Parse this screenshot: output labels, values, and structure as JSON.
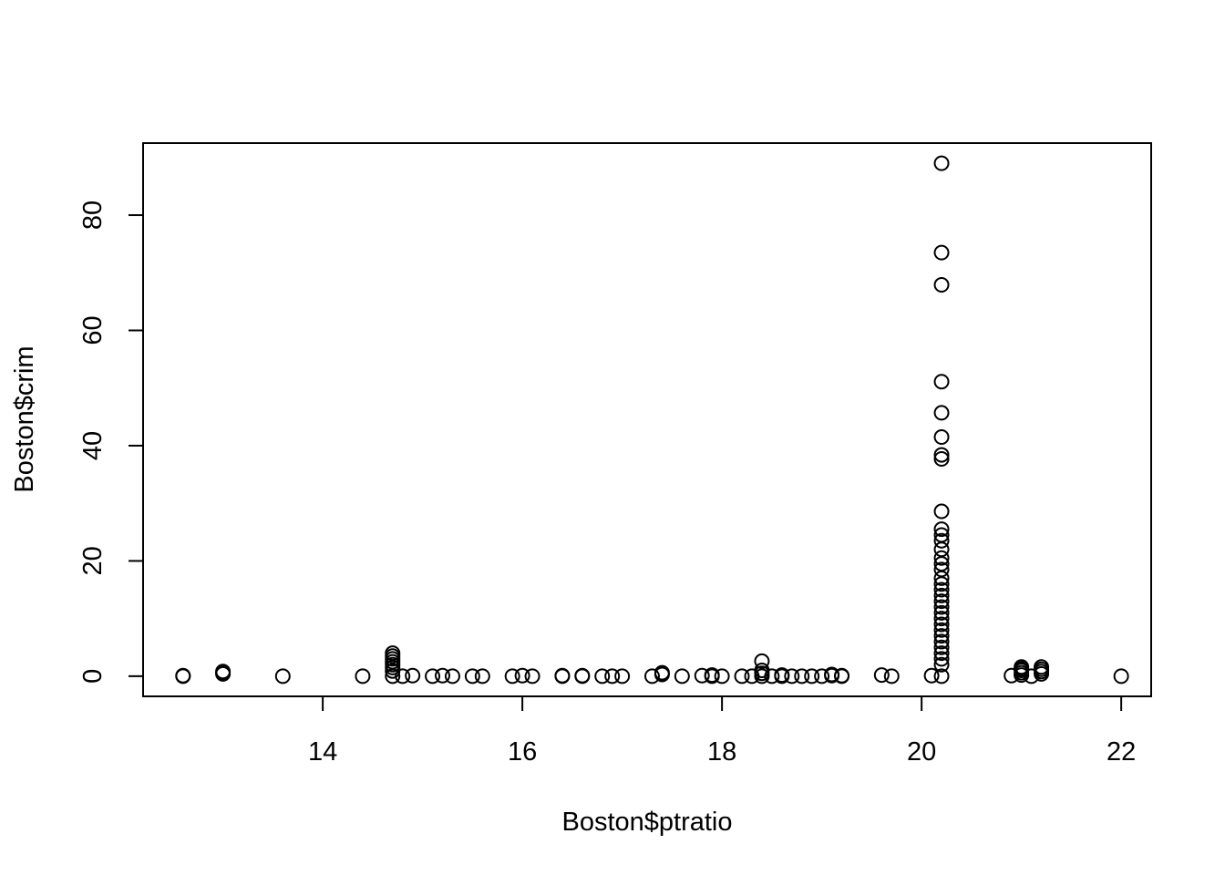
{
  "chart_data": {
    "type": "scatter",
    "xlabel": "Boston$ptratio",
    "ylabel": "Boston$crim",
    "xlim": [
      12.2,
      22.3
    ],
    "ylim": [
      -3.5,
      92.5
    ],
    "x_ticks": [
      14,
      16,
      18,
      20,
      22
    ],
    "y_ticks": [
      0,
      20,
      40,
      60,
      80
    ],
    "x_tick_labels": [
      "14",
      "16",
      "18",
      "20",
      "22"
    ],
    "y_tick_labels": [
      "0",
      "20",
      "40",
      "60",
      "80"
    ],
    "grid": false,
    "colors": {
      "points": "#000000",
      "axes": "#000000",
      "background": "#ffffff"
    },
    "points": [
      [
        12.6,
        0.0
      ],
      [
        12.6,
        0.1
      ],
      [
        13.0,
        0.4
      ],
      [
        13.0,
        0.8
      ],
      [
        13.0,
        0.6
      ],
      [
        13.6,
        0.0
      ],
      [
        14.4,
        0.0
      ],
      [
        14.7,
        0.0
      ],
      [
        14.7,
        0.9
      ],
      [
        14.7,
        1.5
      ],
      [
        14.7,
        2.0
      ],
      [
        14.7,
        2.5
      ],
      [
        14.7,
        3.0
      ],
      [
        14.7,
        3.5
      ],
      [
        14.7,
        4.0
      ],
      [
        14.8,
        0.0
      ],
      [
        14.9,
        0.1
      ],
      [
        15.1,
        0.0
      ],
      [
        15.2,
        0.1
      ],
      [
        15.3,
        0.0
      ],
      [
        15.5,
        0.0
      ],
      [
        15.6,
        0.0
      ],
      [
        15.9,
        0.0
      ],
      [
        16.0,
        0.1
      ],
      [
        16.1,
        0.0
      ],
      [
        16.4,
        0.0
      ],
      [
        16.4,
        0.1
      ],
      [
        16.6,
        0.0
      ],
      [
        16.6,
        0.1
      ],
      [
        16.8,
        0.0
      ],
      [
        16.9,
        0.0
      ],
      [
        17.0,
        0.0
      ],
      [
        17.3,
        0.0
      ],
      [
        17.4,
        0.3
      ],
      [
        17.4,
        0.6
      ],
      [
        17.6,
        0.0
      ],
      [
        17.8,
        0.1
      ],
      [
        17.9,
        0.0
      ],
      [
        17.9,
        0.2
      ],
      [
        18.0,
        0.0
      ],
      [
        18.2,
        0.0
      ],
      [
        18.3,
        0.0
      ],
      [
        18.4,
        0.0
      ],
      [
        18.4,
        0.5
      ],
      [
        18.4,
        1.0
      ],
      [
        18.4,
        2.6
      ],
      [
        18.5,
        0.0
      ],
      [
        18.6,
        0.2
      ],
      [
        18.6,
        0.0
      ],
      [
        18.7,
        0.0
      ],
      [
        18.8,
        0.0
      ],
      [
        18.9,
        0.0
      ],
      [
        19.0,
        0.0
      ],
      [
        19.1,
        0.1
      ],
      [
        19.1,
        0.3
      ],
      [
        19.2,
        0.0
      ],
      [
        19.2,
        0.1
      ],
      [
        19.6,
        0.2
      ],
      [
        19.7,
        0.0
      ],
      [
        20.1,
        0.1
      ],
      [
        20.2,
        0.0
      ],
      [
        20.2,
        2.0
      ],
      [
        20.2,
        3.0
      ],
      [
        20.2,
        4.0
      ],
      [
        20.2,
        5.0
      ],
      [
        20.2,
        6.0
      ],
      [
        20.2,
        7.0
      ],
      [
        20.2,
        8.0
      ],
      [
        20.2,
        9.0
      ],
      [
        20.2,
        10.0
      ],
      [
        20.2,
        11.0
      ],
      [
        20.2,
        12.0
      ],
      [
        20.2,
        13.0
      ],
      [
        20.2,
        14.0
      ],
      [
        20.2,
        15.0
      ],
      [
        20.2,
        16.0
      ],
      [
        20.2,
        17.0
      ],
      [
        20.2,
        18.5
      ],
      [
        20.2,
        19.5
      ],
      [
        20.2,
        20.5
      ],
      [
        20.2,
        22.0
      ],
      [
        20.2,
        23.5
      ],
      [
        20.2,
        24.5
      ],
      [
        20.2,
        25.5
      ],
      [
        20.2,
        28.6
      ],
      [
        20.2,
        37.7
      ],
      [
        20.2,
        38.4
      ],
      [
        20.2,
        41.5
      ],
      [
        20.2,
        45.7
      ],
      [
        20.2,
        51.1
      ],
      [
        20.2,
        67.9
      ],
      [
        20.2,
        73.5
      ],
      [
        20.2,
        89.0
      ],
      [
        20.9,
        0.1
      ],
      [
        21.0,
        0.2
      ],
      [
        21.0,
        0.6
      ],
      [
        21.0,
        1.0
      ],
      [
        21.0,
        1.3
      ],
      [
        21.0,
        1.6
      ],
      [
        21.1,
        0.0
      ],
      [
        21.2,
        0.4
      ],
      [
        21.2,
        0.8
      ],
      [
        21.2,
        1.2
      ],
      [
        21.2,
        1.6
      ],
      [
        22.0,
        0.0
      ]
    ]
  }
}
